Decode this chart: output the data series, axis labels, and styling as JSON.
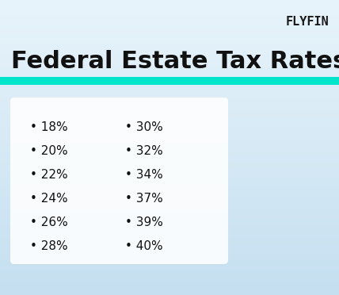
{
  "title": "Federal Estate Tax Rates",
  "title_fontsize": 22,
  "title_fontweight": "bold",
  "title_color": "#111111",
  "title_highlight_color": "#00E5CC",
  "logo_text": "FLYFIN",
  "logo_fontsize": 11,
  "logo_color": "#1a1a1a",
  "bg_color_top": "#e8f4fb",
  "bg_color_bottom": "#c5dff0",
  "card_color": "#ffffff",
  "card_alpha": 0.88,
  "left_col": [
    "18%",
    "20%",
    "22%",
    "24%",
    "26%",
    "28%"
  ],
  "right_col": [
    "30%",
    "32%",
    "34%",
    "37%",
    "39%",
    "40%"
  ],
  "item_fontsize": 11,
  "item_color": "#111111",
  "bullet_color": "#111111",
  "figw": 4.28,
  "figh": 3.72,
  "dpi": 100
}
